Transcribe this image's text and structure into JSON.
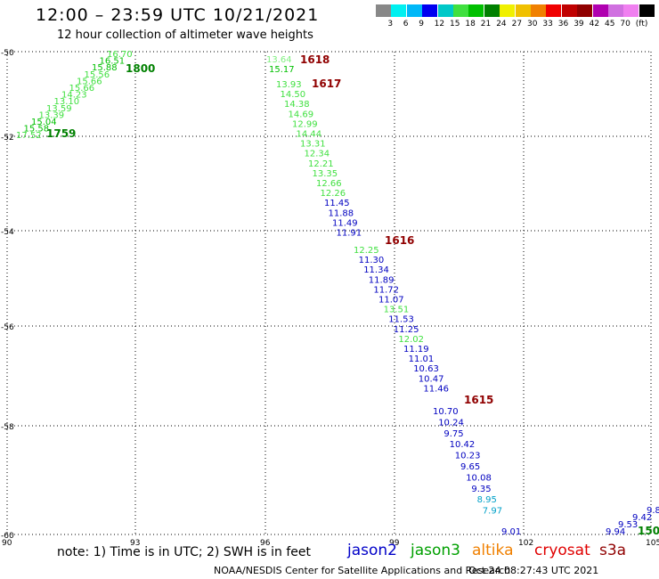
{
  "header": {
    "title": "12:00 – 23:59 UTC 10/21/2021",
    "subtitle": "12 hour collection of altimeter wave heights"
  },
  "color_scale": {
    "colors": [
      "#888888",
      "#00f0f0",
      "#00b8f8",
      "#0000f0",
      "#00c8c8",
      "#40e040",
      "#00c000",
      "#008000",
      "#f0f000",
      "#f0c000",
      "#f08000",
      "#f00000",
      "#c00000",
      "#900000",
      "#b000b0",
      "#d070e0",
      "#f080f0",
      "#000000"
    ],
    "labels": [
      "3",
      "6",
      "9",
      "12",
      "15",
      "18",
      "21",
      "24",
      "27",
      "30",
      "33",
      "36",
      "39",
      "42",
      "45",
      "70",
      "(ft)"
    ]
  },
  "axes": {
    "lat_ticks": [
      "-50",
      "-52",
      "-54",
      "-56",
      "-58",
      "-60"
    ],
    "lon_ticks": [
      "90",
      "93",
      "96",
      "99",
      "102",
      "105"
    ]
  },
  "tracks": [
    {
      "sat": "jason3",
      "label": "1800",
      "label_color": "#008000",
      "obs": [
        {
          "v": "16.70",
          "c": "#40e040"
        },
        {
          "v": "16.51",
          "c": "#00c000"
        },
        {
          "v": "15.88",
          "c": "#00c000"
        },
        {
          "v": "15.56",
          "c": "#40e040"
        },
        {
          "v": "15.66",
          "c": "#40e040"
        },
        {
          "v": "15.66",
          "c": "#40e040"
        },
        {
          "v": "14.23",
          "c": "#40e040"
        },
        {
          "v": "13.10",
          "c": "#40e040"
        },
        {
          "v": "13.59",
          "c": "#40e040"
        },
        {
          "v": "13.39",
          "c": "#40e040"
        },
        {
          "v": "15.04",
          "c": "#00c000"
        },
        {
          "v": "15.58",
          "c": "#00c000"
        },
        {
          "v": "17.52",
          "c": "#40e040"
        }
      ]
    },
    {
      "sat": "jason3",
      "label": "1759",
      "label_color": "#008000",
      "obs": []
    },
    {
      "sat": "jason3",
      "label": "1618",
      "label_color": "#900000",
      "obs": [
        {
          "v": "13.64",
          "c": "#80f080"
        },
        {
          "v": "15.17",
          "c": "#00c000"
        }
      ]
    },
    {
      "sat": "jason3",
      "label": "1617",
      "label_color": "#900000",
      "obs": [
        {
          "v": "13.93",
          "c": "#40e040"
        },
        {
          "v": "14.50",
          "c": "#40e040"
        },
        {
          "v": "14.38",
          "c": "#40e040"
        },
        {
          "v": "14.69",
          "c": "#40e040"
        },
        {
          "v": "12.99",
          "c": "#40e040"
        },
        {
          "v": "14.44",
          "c": "#40e040"
        },
        {
          "v": "13.31",
          "c": "#40e040"
        },
        {
          "v": "12.34",
          "c": "#40e040"
        },
        {
          "v": "12.21",
          "c": "#40e040"
        },
        {
          "v": "13.35",
          "c": "#40e040"
        },
        {
          "v": "12.66",
          "c": "#40e040"
        },
        {
          "v": "12.26",
          "c": "#40e040"
        },
        {
          "v": "11.45",
          "c": "#0000c0"
        },
        {
          "v": "11.88",
          "c": "#0000c0"
        },
        {
          "v": "11.49",
          "c": "#0000c0"
        },
        {
          "v": "11.91",
          "c": "#0000c0"
        }
      ]
    },
    {
      "sat": "jason2",
      "label": "1616",
      "label_color": "#900000",
      "obs": [
        {
          "v": "12.25",
          "c": "#40e040"
        },
        {
          "v": "11.30",
          "c": "#0000c0"
        },
        {
          "v": "11.34",
          "c": "#0000c0"
        },
        {
          "v": "11.89",
          "c": "#0000c0"
        },
        {
          "v": "11.72",
          "c": "#0000c0"
        },
        {
          "v": "11.07",
          "c": "#0000c0"
        },
        {
          "v": "13.51",
          "c": "#40e040"
        },
        {
          "v": "11.53",
          "c": "#0000c0"
        },
        {
          "v": "11.25",
          "c": "#0000c0"
        },
        {
          "v": "12.02",
          "c": "#40e040"
        },
        {
          "v": "11.19",
          "c": "#0000c0"
        },
        {
          "v": "11.01",
          "c": "#0000c0"
        },
        {
          "v": "10.63",
          "c": "#0000c0"
        },
        {
          "v": "10.47",
          "c": "#0000c0"
        },
        {
          "v": "11.46",
          "c": "#0000c0"
        }
      ]
    },
    {
      "sat": "jason2",
      "label": "1615",
      "label_color": "#900000",
      "obs": [
        {
          "v": "10.70",
          "c": "#0000c0"
        },
        {
          "v": "10.24",
          "c": "#0000c0"
        },
        {
          "v": "9.75",
          "c": "#0000c0"
        },
        {
          "v": "10.42",
          "c": "#0000c0"
        },
        {
          "v": "10.23",
          "c": "#0000c0"
        },
        {
          "v": "9.65",
          "c": "#0000c0"
        },
        {
          "v": "10.08",
          "c": "#0000c0"
        },
        {
          "v": "9.35",
          "c": "#0000c0"
        },
        {
          "v": "8.95",
          "c": "#00a0c8"
        },
        {
          "v": "7.97",
          "c": "#00a0c8"
        },
        {
          "v": "9.01",
          "c": "#0000c0"
        }
      ]
    },
    {
      "sat": "jason2",
      "label": "150",
      "label_color": "#008000",
      "obs": [
        {
          "v": "9.94",
          "c": "#0000c0"
        },
        {
          "v": "9.53",
          "c": "#0000c0"
        },
        {
          "v": "9.42",
          "c": "#0000c0"
        },
        {
          "v": "9.8",
          "c": "#0000c0"
        }
      ]
    }
  ],
  "note": "note: 1) Time is in UTC; 2) SWH is in feet",
  "satellites": [
    {
      "name": "jason2",
      "color": "#0000c8"
    },
    {
      "name": "jason3",
      "color": "#00a000"
    },
    {
      "name": "altika",
      "color": "#f08000"
    },
    {
      "name": "cryosat",
      "color": "#e00000"
    },
    {
      "name": "s3a",
      "color": "#900000"
    }
  ],
  "footer": {
    "source": "NOAA/NESDIS Center for Satellite Applications and Research",
    "timestamp": "Oct 24 08:27:43 UTC 2021"
  }
}
